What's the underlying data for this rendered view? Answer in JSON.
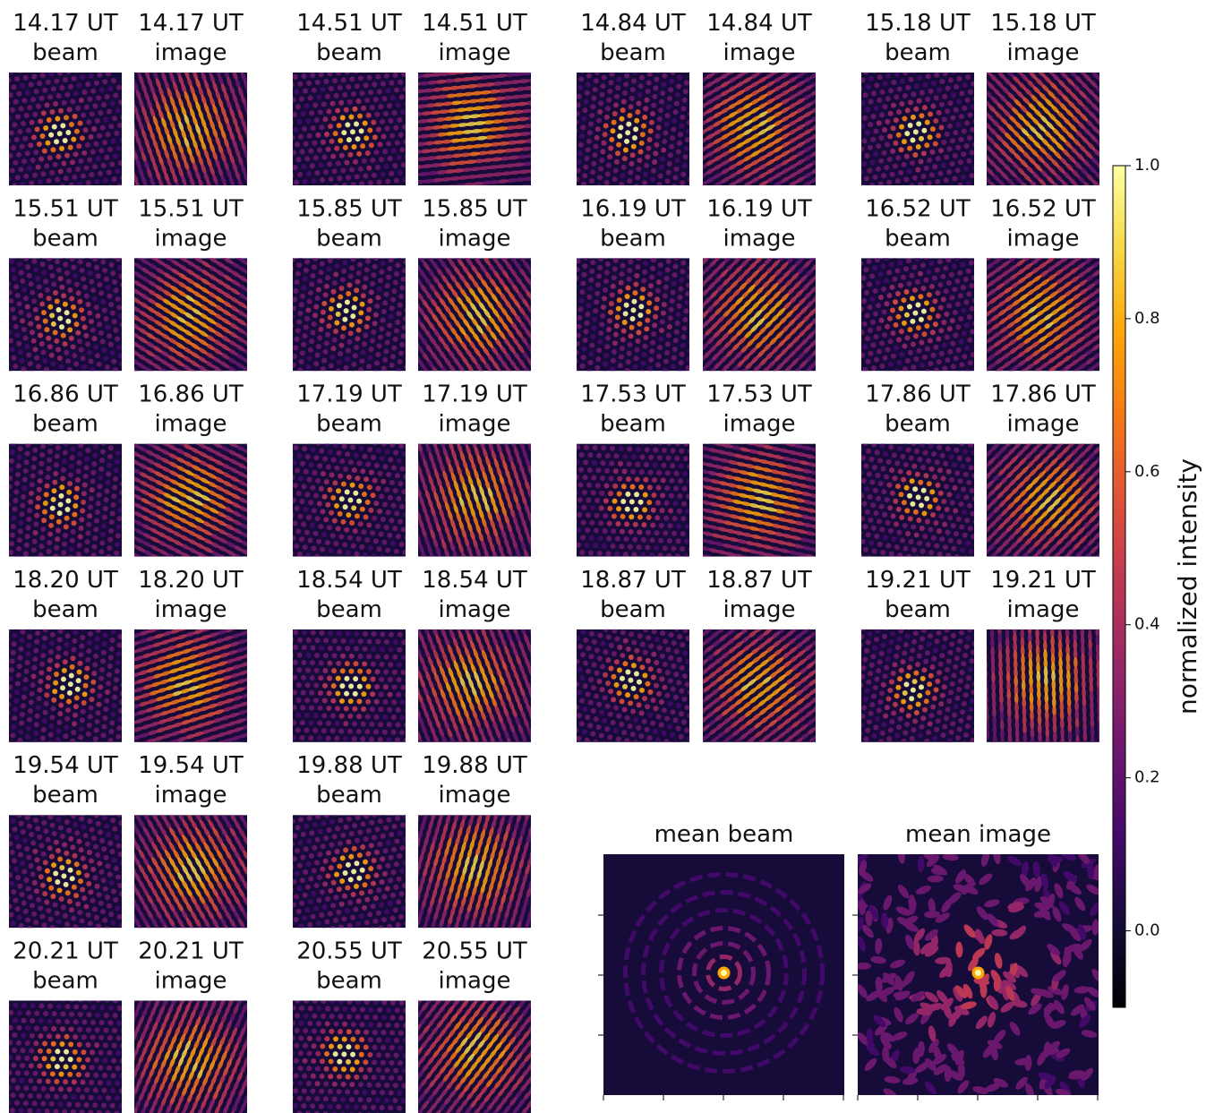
{
  "chart_data": {
    "type": "image_grid",
    "colormap": "inferno",
    "titles": [
      [
        "14.17 UT",
        "beam"
      ],
      [
        "14.17 UT",
        "image"
      ],
      [
        "14.51 UT",
        "beam"
      ],
      [
        "14.51 UT",
        "image"
      ],
      [
        "14.84 UT",
        "beam"
      ],
      [
        "14.84 UT",
        "image"
      ],
      [
        "15.18 UT",
        "beam"
      ],
      [
        "15.18 UT",
        "image"
      ],
      [
        "15.51 UT",
        "beam"
      ],
      [
        "15.51 UT",
        "image"
      ],
      [
        "15.85 UT",
        "beam"
      ],
      [
        "15.85 UT",
        "image"
      ],
      [
        "16.19 UT",
        "beam"
      ],
      [
        "16.19 UT",
        "image"
      ],
      [
        "16.52 UT",
        "beam"
      ],
      [
        "16.52 UT",
        "image"
      ],
      [
        "16.86 UT",
        "beam"
      ],
      [
        "16.86 UT",
        "image"
      ],
      [
        "17.19 UT",
        "beam"
      ],
      [
        "17.19 UT",
        "image"
      ],
      [
        "17.53 UT",
        "beam"
      ],
      [
        "17.53 UT",
        "image"
      ],
      [
        "17.86 UT",
        "beam"
      ],
      [
        "17.86 UT",
        "image"
      ],
      [
        "18.20 UT",
        "beam"
      ],
      [
        "18.20 UT",
        "image"
      ],
      [
        "18.54 UT",
        "beam"
      ],
      [
        "18.54 UT",
        "image"
      ],
      [
        "18.87 UT",
        "beam"
      ],
      [
        "18.87 UT",
        "image"
      ],
      [
        "19.21 UT",
        "beam"
      ],
      [
        "19.21 UT",
        "image"
      ],
      [
        "19.54 UT",
        "beam"
      ],
      [
        "19.54 UT",
        "image"
      ],
      [
        "19.88 UT",
        "beam"
      ],
      [
        "19.88 UT",
        "image"
      ],
      [
        "20.21 UT",
        "beam"
      ],
      [
        "20.21 UT",
        "image"
      ],
      [
        "20.55 UT",
        "beam"
      ],
      [
        "20.55 UT",
        "image"
      ]
    ],
    "mean_titles": [
      "mean beam",
      "mean image"
    ],
    "colorbar": {
      "label": "normalized intensity",
      "ylim": [
        -0.1,
        1.0
      ],
      "yticks": [
        {
          "value": 0,
          "label": "0.0"
        },
        {
          "value": 0.2,
          "label": "0.2"
        },
        {
          "value": 0.4,
          "label": "0.4"
        },
        {
          "value": 0.6,
          "label": "0.6"
        },
        {
          "value": 0.8,
          "label": "0.8"
        },
        {
          "value": 1,
          "label": "1.0"
        }
      ]
    }
  }
}
